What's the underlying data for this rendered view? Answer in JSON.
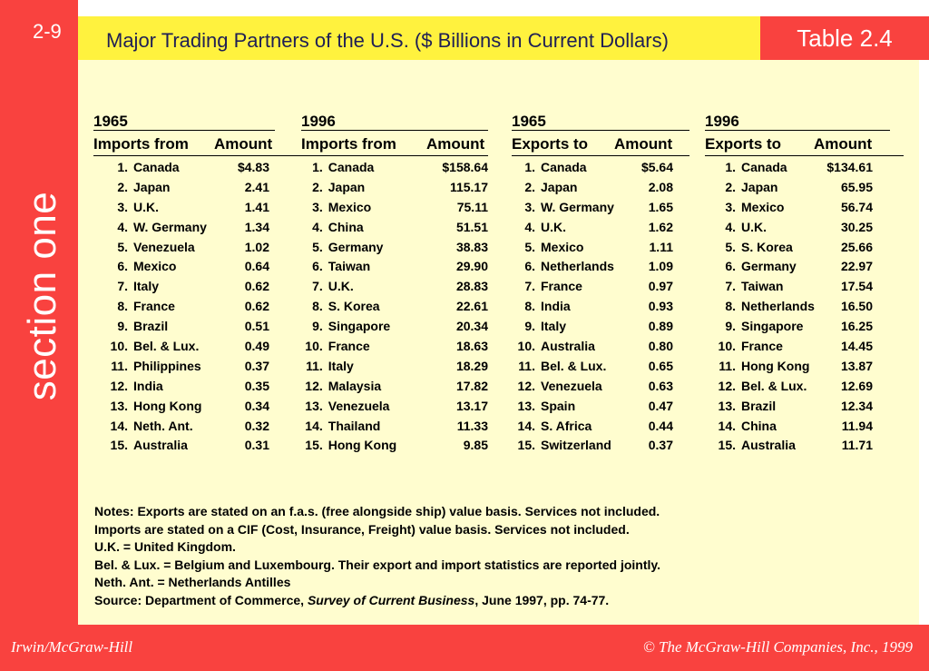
{
  "slide": {
    "number": "2-9",
    "section_word": "section",
    "section_accent": "one"
  },
  "header": {
    "title": "Major Trading Partners of the U.S. ($ Billions in Current Dollars)",
    "table_tag": "Table 2.4"
  },
  "tables": [
    {
      "year": "1965",
      "label": "Imports from",
      "amount_label": "Amount",
      "rows": [
        {
          "rank": "1.",
          "country": "Canada",
          "amount": "$4.83"
        },
        {
          "rank": "2.",
          "country": "Japan",
          "amount": "2.41"
        },
        {
          "rank": "3.",
          "country": "U.K.",
          "amount": "1.41"
        },
        {
          "rank": "4.",
          "country": "W. Germany",
          "amount": "1.34"
        },
        {
          "rank": "5.",
          "country": "Venezuela",
          "amount": "1.02"
        },
        {
          "rank": "6.",
          "country": "Mexico",
          "amount": "0.64"
        },
        {
          "rank": "7.",
          "country": "Italy",
          "amount": "0.62"
        },
        {
          "rank": "8.",
          "country": "France",
          "amount": "0.62"
        },
        {
          "rank": "9.",
          "country": "Brazil",
          "amount": "0.51"
        },
        {
          "rank": "10.",
          "country": "Bel. & Lux.",
          "amount": "0.49"
        },
        {
          "rank": "11.",
          "country": "Philippines",
          "amount": "0.37"
        },
        {
          "rank": "12.",
          "country": "India",
          "amount": "0.35"
        },
        {
          "rank": "13.",
          "country": "Hong Kong",
          "amount": "0.34"
        },
        {
          "rank": "14.",
          "country": "Neth. Ant.",
          "amount": "0.32"
        },
        {
          "rank": "15.",
          "country": "Australia",
          "amount": "0.31"
        }
      ]
    },
    {
      "year": "1996",
      "label": "Imports from",
      "amount_label": "Amount",
      "rows": [
        {
          "rank": "1.",
          "country": "Canada",
          "amount": "$158.64"
        },
        {
          "rank": "2.",
          "country": "Japan",
          "amount": "115.17"
        },
        {
          "rank": "3.",
          "country": "Mexico",
          "amount": "75.11"
        },
        {
          "rank": "4.",
          "country": "China",
          "amount": "51.51"
        },
        {
          "rank": "5.",
          "country": "Germany",
          "amount": "38.83"
        },
        {
          "rank": "6.",
          "country": "Taiwan",
          "amount": "29.90"
        },
        {
          "rank": "7.",
          "country": "U.K.",
          "amount": "28.83"
        },
        {
          "rank": "8.",
          "country": "S. Korea",
          "amount": "22.61"
        },
        {
          "rank": "9.",
          "country": "Singapore",
          "amount": "20.34"
        },
        {
          "rank": "10.",
          "country": "France",
          "amount": "18.63"
        },
        {
          "rank": "11.",
          "country": "Italy",
          "amount": "18.29"
        },
        {
          "rank": "12.",
          "country": "Malaysia",
          "amount": "17.82"
        },
        {
          "rank": "13.",
          "country": "Venezuela",
          "amount": "13.17"
        },
        {
          "rank": "14.",
          "country": "Thailand",
          "amount": "11.33"
        },
        {
          "rank": "15.",
          "country": "Hong Kong",
          "amount": "9.85"
        }
      ]
    },
    {
      "year": "1965",
      "label": "Exports to",
      "amount_label": "Amount",
      "rows": [
        {
          "rank": "1.",
          "country": "Canada",
          "amount": "$5.64"
        },
        {
          "rank": "2.",
          "country": "Japan",
          "amount": "2.08"
        },
        {
          "rank": "3.",
          "country": "W. Germany",
          "amount": "1.65"
        },
        {
          "rank": "4.",
          "country": "U.K.",
          "amount": "1.62"
        },
        {
          "rank": "5.",
          "country": "Mexico",
          "amount": "1.11"
        },
        {
          "rank": "6.",
          "country": "Netherlands",
          "amount": "1.09"
        },
        {
          "rank": "7.",
          "country": "France",
          "amount": "0.97"
        },
        {
          "rank": "8.",
          "country": "India",
          "amount": "0.93"
        },
        {
          "rank": "9.",
          "country": "Italy",
          "amount": "0.89"
        },
        {
          "rank": "10.",
          "country": "Australia",
          "amount": "0.80"
        },
        {
          "rank": "11.",
          "country": "Bel. & Lux.",
          "amount": "0.65"
        },
        {
          "rank": "12.",
          "country": "Venezuela",
          "amount": "0.63"
        },
        {
          "rank": "13.",
          "country": "Spain",
          "amount": "0.47"
        },
        {
          "rank": "14.",
          "country": "S. Africa",
          "amount": "0.44"
        },
        {
          "rank": "15.",
          "country": "Switzerland",
          "amount": "0.37"
        }
      ]
    },
    {
      "year": "1996",
      "label": "Exports to",
      "amount_label": "Amount",
      "rows": [
        {
          "rank": "1.",
          "country": "Canada",
          "amount": "$134.61"
        },
        {
          "rank": "2.",
          "country": "Japan",
          "amount": "65.95"
        },
        {
          "rank": "3.",
          "country": "Mexico",
          "amount": "56.74"
        },
        {
          "rank": "4.",
          "country": "U.K.",
          "amount": "30.25"
        },
        {
          "rank": "5.",
          "country": "S. Korea",
          "amount": "25.66"
        },
        {
          "rank": "6.",
          "country": "Germany",
          "amount": "22.97"
        },
        {
          "rank": "7.",
          "country": "Taiwan",
          "amount": "17.54"
        },
        {
          "rank": "8.",
          "country": "Netherlands",
          "amount": "16.50"
        },
        {
          "rank": "9.",
          "country": "Singapore",
          "amount": "16.25"
        },
        {
          "rank": "10.",
          "country": "France",
          "amount": "14.45"
        },
        {
          "rank": "11.",
          "country": "Hong Kong",
          "amount": "13.87"
        },
        {
          "rank": "12.",
          "country": "Bel. & Lux.",
          "amount": "12.69"
        },
        {
          "rank": "13.",
          "country": "Brazil",
          "amount": "12.34"
        },
        {
          "rank": "14.",
          "country": "China",
          "amount": "11.94"
        },
        {
          "rank": "15.",
          "country": "Australia",
          "amount": "11.71"
        }
      ]
    }
  ],
  "notes": {
    "line1": "Notes:  Exports are stated on an f.a.s. (free alongside ship) value basis.  Services not included.",
    "line2": "Imports are stated on a CIF (Cost, Insurance, Freight) value basis.  Services not included.",
    "line3": "U.K. = United Kingdom.",
    "line4": "Bel. & Lux. = Belgium and Luxembourg.  Their export and import statistics are reported jointly.",
    "line5": "Neth. Ant. = Netherlands Antilles",
    "source_prefix": "Source: Department of Commerce, ",
    "source_title": "Survey of Current Business",
    "source_suffix": ", June 1997, pp. 74-77."
  },
  "footer": {
    "publisher": "Irwin/McGraw-Hill",
    "copyright": "© The McGraw-Hill Companies, Inc., 1999"
  },
  "colors": {
    "red": "#f9423f",
    "yellow": "#fff23e",
    "cream": "#fffdcf",
    "title_text": "#1f1f55"
  }
}
